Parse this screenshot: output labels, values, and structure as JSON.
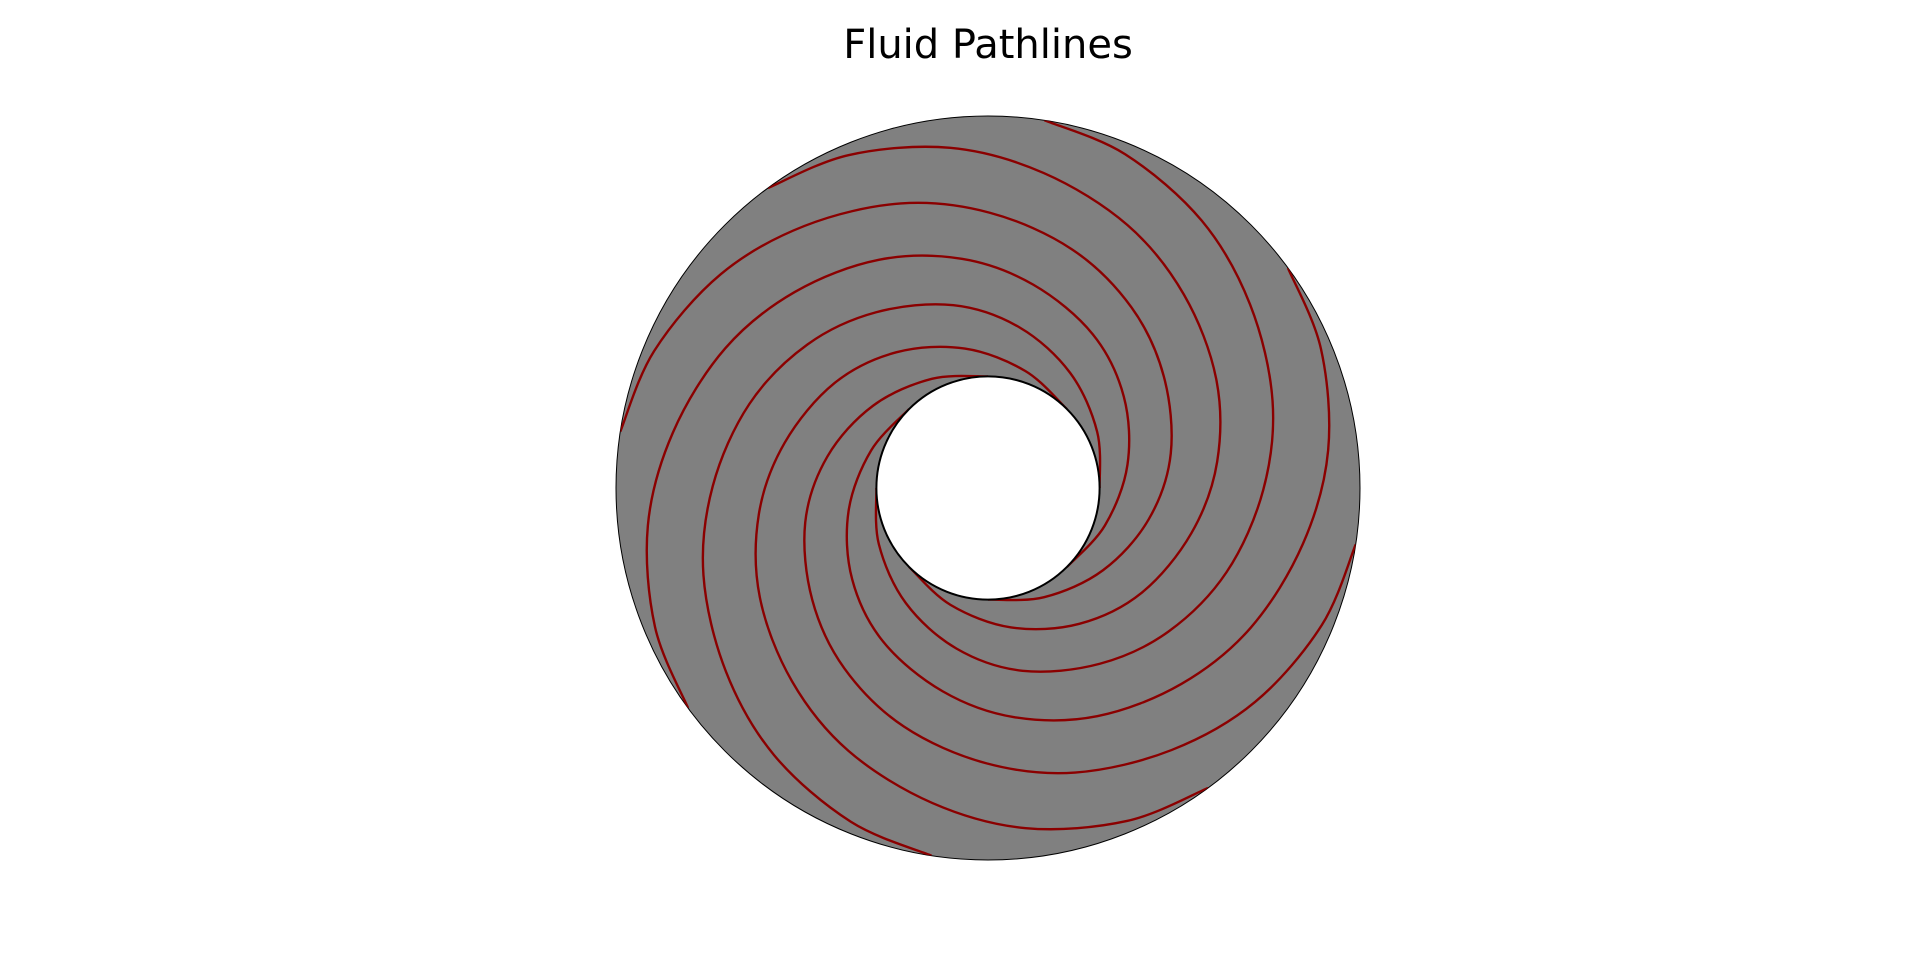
{
  "title": "Fluid Pathlines",
  "colors": {
    "annulus_fill": "#808080",
    "annulus_edge": "#000000",
    "hole_fill": "#ffffff",
    "pathline": "#8b0000",
    "background": "#ffffff"
  },
  "geometry": {
    "inner_radius": 0.3,
    "outer_radius": 1.0
  },
  "pathlines": {
    "count": 8,
    "radial_steps": 14
  }
}
